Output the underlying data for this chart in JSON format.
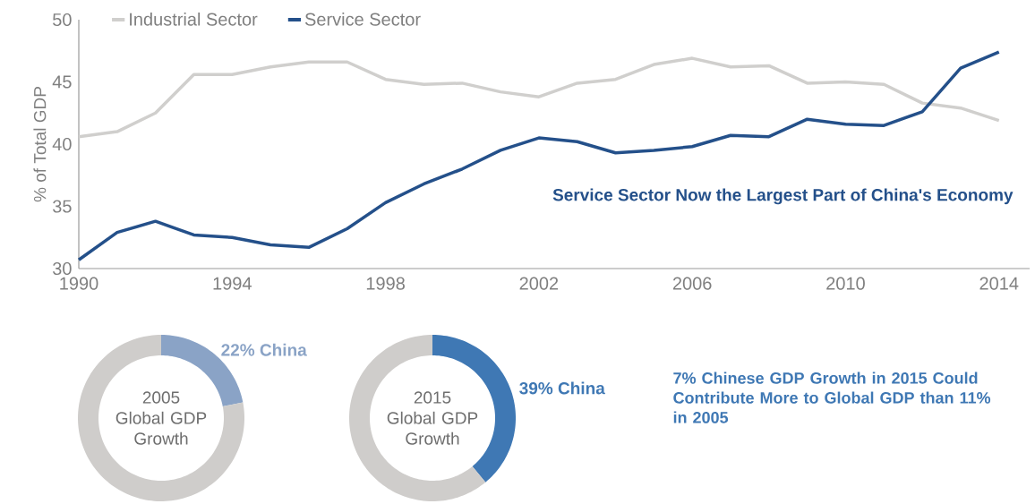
{
  "chart_data": [
    {
      "type": "line",
      "ylabel": "% of Total GDP",
      "legend": "top left",
      "x": [
        1990,
        1991,
        1992,
        1993,
        1994,
        1995,
        1996,
        1997,
        1998,
        1999,
        2000,
        2001,
        2002,
        2003,
        2004,
        2005,
        2006,
        2007,
        2008,
        2009,
        2010,
        2011,
        2012,
        2013,
        2014
      ],
      "xlim": [
        1990,
        2014.8
      ],
      "xticks": [
        1990,
        1994,
        1998,
        2002,
        2006,
        2010,
        2014
      ],
      "ylim": [
        30,
        50
      ],
      "yticks": [
        30,
        35,
        40,
        45,
        50
      ],
      "series": [
        {
          "name": "Industrial Sector",
          "color": "#d0cfcd",
          "values": [
            40.6,
            41.0,
            42.5,
            45.6,
            45.6,
            46.2,
            46.6,
            46.6,
            45.2,
            44.8,
            44.9,
            44.2,
            43.8,
            44.9,
            45.2,
            46.4,
            46.9,
            46.2,
            46.3,
            44.9,
            45.0,
            44.8,
            43.3,
            42.9,
            41.9
          ]
        },
        {
          "name": "Service Sector",
          "color": "#24508a",
          "values": [
            30.7,
            32.9,
            33.8,
            32.7,
            32.5,
            31.9,
            31.7,
            33.2,
            35.3,
            36.8,
            38.0,
            39.5,
            40.5,
            40.2,
            39.3,
            39.5,
            39.8,
            40.7,
            40.6,
            42.0,
            41.6,
            41.5,
            42.6,
            46.1,
            47.4
          ]
        }
      ],
      "annotations": [
        "Service Sector Now the Largest Part of China's Economy"
      ]
    },
    {
      "type": "donut",
      "title": "2005 Global GDP Growth",
      "categories": [
        "China",
        null
      ],
      "values": [
        22,
        78
      ],
      "colors": [
        "#8aa3c6",
        "#cfcdcb"
      ],
      "value_labels": [
        "22%",
        null
      ]
    },
    {
      "type": "donut",
      "title": "2015 Global GDP Growth",
      "categories": [
        "China",
        null
      ],
      "values": [
        39,
        61
      ],
      "colors": [
        "#3f78b4",
        "#cfcdcb"
      ],
      "value_labels": [
        "39%",
        null
      ]
    },
    {
      "type": "other",
      "title": "7% Chinese GDP Growth in 2015 Could Contribute More to Global GDP than 11% in 2005"
    }
  ]
}
